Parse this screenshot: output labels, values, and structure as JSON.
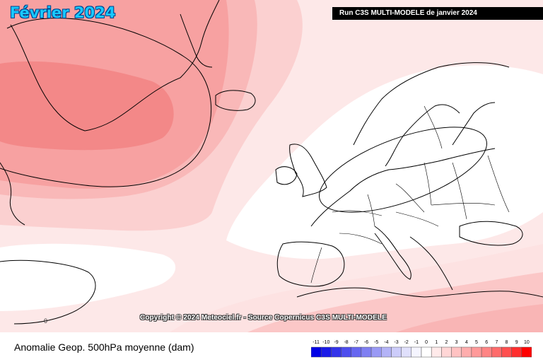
{
  "header": {
    "title": "Février 2024",
    "run_info": "Run C3S MULTI-MODELE de janvier 2024"
  },
  "map": {
    "contour_zero_label": "0",
    "copyright": "Copyright © 2024 Meteociel.fr - Source Copernicus C3S MULTI-MODELE"
  },
  "footer": {
    "parameter": "Anomalie Geop. 500hPa moyenne (dam)"
  },
  "legend": {
    "ticks": [
      "-11",
      "-10",
      "-9",
      "-8",
      "-7",
      "-6",
      "-5",
      "-4",
      "-3",
      "-2",
      "-1",
      "0",
      "1",
      "2",
      "3",
      "4",
      "5",
      "6",
      "7",
      "8",
      "9",
      "10"
    ],
    "colors": [
      "#0000e6",
      "#1a1ae8",
      "#3333ea",
      "#4d4dee",
      "#6666f0",
      "#7f7ff2",
      "#9999f5",
      "#b3b3f7",
      "#ccccfa",
      "#e0e0fc",
      "#f5f5ff",
      "#ffffff",
      "#ffeaea",
      "#ffd6d6",
      "#ffc2c2",
      "#ffadad",
      "#ff9999",
      "#ff8484",
      "#ff6b6b",
      "#ff4f4f",
      "#ff2e2e",
      "#ff0000"
    ]
  }
}
